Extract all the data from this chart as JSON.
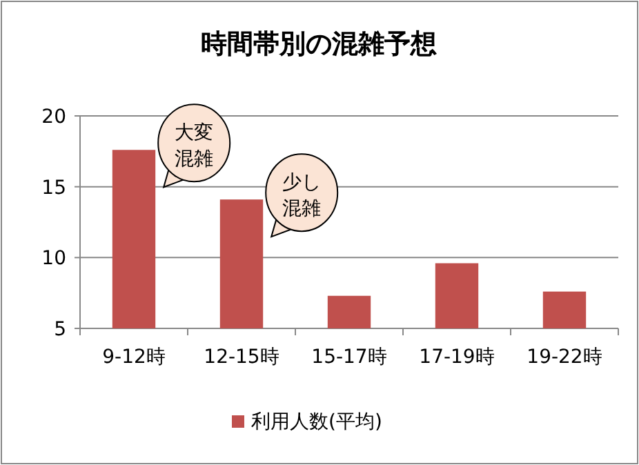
{
  "chart_data": {
    "type": "bar",
    "title": "時間帯別の混雑予想",
    "categories": [
      "9-12時",
      "12-15時",
      "15-17時",
      "17-19時",
      "19-22時"
    ],
    "series": [
      {
        "name": "利用人数(平均)",
        "color": "#c0504d",
        "values": [
          17.6,
          14.1,
          7.3,
          9.6,
          7.6
        ]
      }
    ],
    "ylim": [
      5,
      20
    ],
    "yticks": [
      5,
      10,
      15,
      20
    ],
    "grid": "y",
    "legend": "bottom",
    "annotations": [
      {
        "text": "大変混雑",
        "x": "9-12時",
        "y": 17.6
      },
      {
        "text": "少し混雑",
        "x": "12-15時",
        "y": 14.1
      }
    ]
  }
}
